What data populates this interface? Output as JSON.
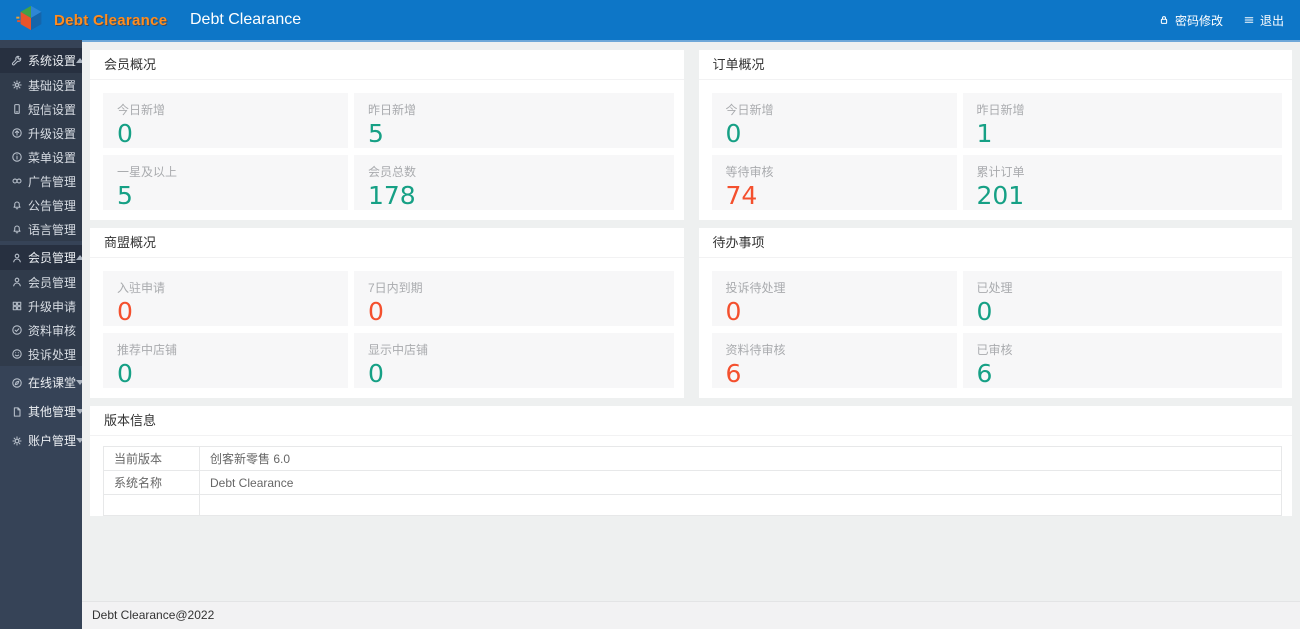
{
  "header": {
    "brand": "Debt Clearance",
    "title": "Debt Clearance",
    "actions": [
      {
        "id": "change-password",
        "label": "密码修改",
        "icon": "lock-icon"
      },
      {
        "id": "logout",
        "label": "退出",
        "icon": "logout-icon"
      }
    ]
  },
  "sidebar": {
    "sections": [
      {
        "id": "system-settings",
        "label": "系统设置",
        "icon": "wrench-icon",
        "expanded": true,
        "children": [
          {
            "id": "basic-settings",
            "label": "基础设置",
            "icon": "gear-icon"
          },
          {
            "id": "sms-settings",
            "label": "短信设置",
            "icon": "phone-icon"
          },
          {
            "id": "upgrade-settings",
            "label": "升级设置",
            "icon": "up-circle-icon"
          },
          {
            "id": "menu-settings",
            "label": "菜单设置",
            "icon": "info-circle-icon"
          },
          {
            "id": "ad-management",
            "label": "广告管理",
            "icon": "link-icon"
          },
          {
            "id": "announcement-management",
            "label": "公告管理",
            "icon": "bell-icon"
          },
          {
            "id": "language-management",
            "label": "语言管理",
            "icon": "bell-icon"
          }
        ]
      },
      {
        "id": "member-management-section",
        "label": "会员管理",
        "icon": "user-icon",
        "expanded": true,
        "children": [
          {
            "id": "member-management",
            "label": "会员管理",
            "icon": "user-icon"
          },
          {
            "id": "upgrade-applications",
            "label": "升级申请",
            "icon": "grid-icon"
          },
          {
            "id": "profile-review",
            "label": "资料审核",
            "icon": "check-circle-icon"
          },
          {
            "id": "complaint-handling",
            "label": "投诉处理",
            "icon": "smile-icon"
          }
        ]
      },
      {
        "id": "online-classroom",
        "label": "在线课堂",
        "icon": "compass-icon",
        "expanded": false,
        "children": []
      },
      {
        "id": "other-management",
        "label": "其他管理",
        "icon": "file-icon",
        "expanded": false,
        "children": []
      },
      {
        "id": "account-management",
        "label": "账户管理",
        "icon": "gear-sun-icon",
        "expanded": false,
        "children": []
      }
    ]
  },
  "cards": [
    {
      "id": "member-overview",
      "title": "会员概况",
      "stats": [
        {
          "label": "今日新增",
          "value": "0",
          "color": "teal"
        },
        {
          "label": "昨日新增",
          "value": "5",
          "color": "teal"
        },
        {
          "label": "一星及以上",
          "value": "5",
          "color": "teal"
        },
        {
          "label": "会员总数",
          "value": "178",
          "color": "teal"
        }
      ]
    },
    {
      "id": "order-overview",
      "title": "订单概况",
      "stats": [
        {
          "label": "今日新增",
          "value": "0",
          "color": "teal"
        },
        {
          "label": "昨日新增",
          "value": "1",
          "color": "teal"
        },
        {
          "label": "等待审核",
          "value": "74",
          "color": "red"
        },
        {
          "label": "累计订单",
          "value": "201",
          "color": "teal"
        }
      ]
    },
    {
      "id": "shop-alliance-overview",
      "title": "商盟概况",
      "stats": [
        {
          "label": "入驻申请",
          "value": "0",
          "color": "red"
        },
        {
          "label": "7日内到期",
          "value": "0",
          "color": "red"
        },
        {
          "label": "推荐中店铺",
          "value": "0",
          "color": "teal"
        },
        {
          "label": "显示中店铺",
          "value": "0",
          "color": "teal"
        }
      ]
    },
    {
      "id": "todo-items",
      "title": "待办事项",
      "stats": [
        {
          "label": "投诉待处理",
          "value": "0",
          "color": "red"
        },
        {
          "label": "已处理",
          "value": "0",
          "color": "teal"
        },
        {
          "label": "资料待审核",
          "value": "6",
          "color": "red"
        },
        {
          "label": "已审核",
          "value": "6",
          "color": "teal"
        }
      ]
    }
  ],
  "version_info": {
    "title": "版本信息",
    "rows": [
      {
        "label": "当前版本",
        "value": "创客新零售 6.0"
      },
      {
        "label": "系统名称",
        "value": "Debt Clearance"
      },
      {
        "label": "",
        "value": ""
      }
    ]
  },
  "footer": {
    "text": "Debt Clearance@2022"
  },
  "colors": {
    "teal": "#16a085",
    "red": "#f4502e",
    "header_blue": "#0d76c7",
    "sidebar_navy": "#364357",
    "brand_orange": "#ff8d1e"
  }
}
